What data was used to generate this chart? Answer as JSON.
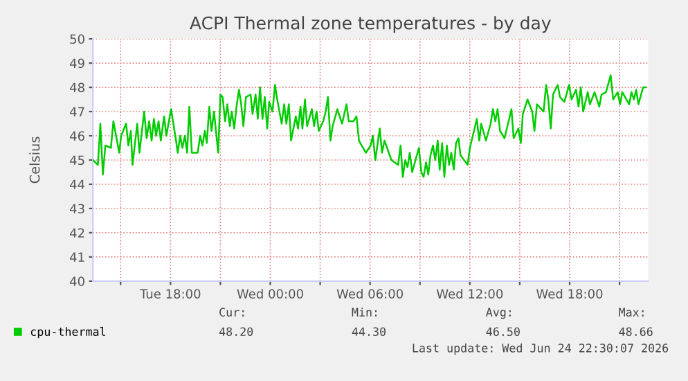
{
  "chart_data": {
    "type": "line",
    "title": "ACPI Thermal zone temperatures - by day",
    "ylabel": "Celsius",
    "xlim": [
      "2026-06-23T13:20",
      "2026-06-24T22:43"
    ],
    "xticks": [
      {
        "value": "2026-06-23T15:00",
        "label": null
      },
      {
        "value": "2026-06-23T18:00",
        "label": "Tue 18:00"
      },
      {
        "value": "2026-06-23T21:00",
        "label": null
      },
      {
        "value": "2026-06-24T00:00",
        "label": "Wed 00:00"
      },
      {
        "value": "2026-06-24T03:00",
        "label": null
      },
      {
        "value": "2026-06-24T06:00",
        "label": "Wed 06:00"
      },
      {
        "value": "2026-06-24T09:00",
        "label": null
      },
      {
        "value": "2026-06-24T12:00",
        "label": "Wed 12:00"
      },
      {
        "value": "2026-06-24T15:00",
        "label": null
      },
      {
        "value": "2026-06-24T18:00",
        "label": "Wed 18:00"
      },
      {
        "value": "2026-06-24T21:00",
        "label": null
      }
    ],
    "ylim": [
      40,
      50
    ],
    "yticks": [
      40,
      41,
      42,
      43,
      44,
      45,
      46,
      47,
      48,
      49,
      50
    ],
    "grid": true,
    "legend": "bottom left",
    "marker": "none",
    "line_style": "solid",
    "series": [
      {
        "name": "cpu-thermal",
        "color": "#00cc00",
        "x": [
          "2026-06-23T13:20",
          "2026-06-23T13:38",
          "2026-06-23T13:47",
          "2026-06-23T13:56",
          "2026-06-23T14:05",
          "2026-06-23T14:25",
          "2026-06-23T14:34",
          "2026-06-23T14:55",
          "2026-06-23T15:02",
          "2026-06-23T15:20",
          "2026-06-23T15:28",
          "2026-06-23T15:37",
          "2026-06-23T15:43",
          "2026-06-23T16:00",
          "2026-06-23T16:08",
          "2026-06-23T16:25",
          "2026-06-23T16:34",
          "2026-06-23T16:43",
          "2026-06-23T16:52",
          "2026-06-23T17:00",
          "2026-06-23T17:08",
          "2026-06-23T17:17",
          "2026-06-23T17:25",
          "2026-06-23T17:37",
          "2026-06-23T17:45",
          "2026-06-23T18:02",
          "2026-06-23T18:20",
          "2026-06-23T18:26",
          "2026-06-23T18:35",
          "2026-06-23T18:43",
          "2026-06-23T18:52",
          "2026-06-23T19:00",
          "2026-06-23T19:08",
          "2026-06-23T19:17",
          "2026-06-23T19:38",
          "2026-06-23T19:47",
          "2026-06-23T19:55",
          "2026-06-23T20:04",
          "2026-06-23T20:11",
          "2026-06-23T20:20",
          "2026-06-23T20:28",
          "2026-06-23T20:37",
          "2026-06-23T20:52",
          "2026-06-23T21:00",
          "2026-06-23T21:08",
          "2026-06-23T21:17",
          "2026-06-23T21:25",
          "2026-06-23T21:34",
          "2026-06-23T21:41",
          "2026-06-23T21:50",
          "2026-06-23T21:58",
          "2026-06-23T22:07",
          "2026-06-23T22:15",
          "2026-06-23T22:23",
          "2026-06-23T22:32",
          "2026-06-23T22:49",
          "2026-06-23T22:56",
          "2026-06-23T23:07",
          "2026-06-23T23:15",
          "2026-06-23T23:23",
          "2026-06-23T23:32",
          "2026-06-23T23:40",
          "2026-06-23T23:49",
          "2026-06-23T23:56",
          "2026-06-24T00:08",
          "2026-06-24T00:17",
          "2026-06-24T00:25",
          "2026-06-24T00:41",
          "2026-06-24T00:50",
          "2026-06-24T00:58",
          "2026-06-24T01:07",
          "2026-06-24T01:15",
          "2026-06-24T01:32",
          "2026-06-24T01:40",
          "2026-06-24T01:49",
          "2026-06-24T01:56",
          "2026-06-24T02:05",
          "2026-06-24T02:13",
          "2026-06-24T02:30",
          "2026-06-24T02:38",
          "2026-06-24T02:47",
          "2026-06-24T02:55",
          "2026-06-24T03:11",
          "2026-06-24T03:20",
          "2026-06-24T03:28",
          "2026-06-24T03:37",
          "2026-06-24T03:45",
          "2026-06-24T04:02",
          "2026-06-24T04:19",
          "2026-06-24T04:35",
          "2026-06-24T04:43",
          "2026-06-24T05:00",
          "2026-06-24T05:11",
          "2026-06-24T05:20",
          "2026-06-24T05:45",
          "2026-06-24T06:02",
          "2026-06-24T06:10",
          "2026-06-24T06:19",
          "2026-06-24T06:35",
          "2026-06-24T06:43",
          "2026-06-24T06:52",
          "2026-06-24T07:17",
          "2026-06-24T07:41",
          "2026-06-24T07:50",
          "2026-06-24T07:58",
          "2026-06-24T08:07",
          "2026-06-24T08:15",
          "2026-06-24T08:23",
          "2026-06-24T08:32",
          "2026-06-24T08:56",
          "2026-06-24T09:05",
          "2026-06-24T09:13",
          "2026-06-24T09:22",
          "2026-06-24T09:30",
          "2026-06-24T09:38",
          "2026-06-24T09:47",
          "2026-06-24T09:55",
          "2026-06-24T10:04",
          "2026-06-24T10:11",
          "2026-06-24T10:20",
          "2026-06-24T10:28",
          "2026-06-24T10:37",
          "2026-06-24T10:45",
          "2026-06-24T10:53",
          "2026-06-24T11:02",
          "2026-06-24T11:10",
          "2026-06-24T11:19",
          "2026-06-24T11:26",
          "2026-06-24T11:52",
          "2026-06-24T12:00",
          "2026-06-24T12:17",
          "2026-06-24T12:25",
          "2026-06-24T12:34",
          "2026-06-24T12:41",
          "2026-06-24T12:58",
          "2026-06-24T13:15",
          "2026-06-24T13:23",
          "2026-06-24T13:32",
          "2026-06-24T13:40",
          "2026-06-24T13:49",
          "2026-06-24T14:05",
          "2026-06-24T14:22",
          "2026-06-24T14:30",
          "2026-06-24T14:38",
          "2026-06-24T14:55",
          "2026-06-24T15:04",
          "2026-06-24T15:11",
          "2026-06-24T15:28",
          "2026-06-24T15:45",
          "2026-06-24T15:53",
          "2026-06-24T16:02",
          "2026-06-24T16:26",
          "2026-06-24T16:35",
          "2026-06-24T16:43",
          "2026-06-24T16:52",
          "2026-06-24T17:00",
          "2026-06-24T17:17",
          "2026-06-24T17:25",
          "2026-06-24T17:41",
          "2026-06-24T17:58",
          "2026-06-24T18:07",
          "2026-06-24T18:23",
          "2026-06-24T18:32",
          "2026-06-24T18:40",
          "2026-06-24T18:49",
          "2026-06-24T19:05",
          "2026-06-24T19:13",
          "2026-06-24T19:30",
          "2026-06-24T19:47",
          "2026-06-24T19:55",
          "2026-06-24T20:11",
          "2026-06-24T20:28",
          "2026-06-24T20:37",
          "2026-06-24T20:53",
          "2026-06-24T21:02",
          "2026-06-24T21:10",
          "2026-06-24T21:35",
          "2026-06-24T21:43",
          "2026-06-24T21:52",
          "2026-06-24T22:00",
          "2026-06-24T22:08",
          "2026-06-24T22:25",
          "2026-06-24T22:34"
        ],
        "values": [
          45.0,
          44.8,
          46.5,
          44.4,
          45.6,
          45.5,
          46.6,
          45.3,
          46.0,
          46.5,
          45.6,
          46.2,
          44.8,
          46.5,
          45.3,
          47.0,
          45.9,
          46.6,
          45.8,
          46.7,
          46.0,
          46.6,
          45.8,
          46.8,
          46.0,
          47.1,
          45.8,
          45.3,
          46.0,
          45.5,
          46.0,
          45.3,
          47.2,
          45.3,
          45.3,
          46.0,
          45.6,
          46.2,
          45.7,
          47.2,
          46.2,
          47.0,
          45.3,
          47.7,
          47.6,
          46.6,
          47.3,
          46.4,
          47.0,
          46.3,
          47.2,
          47.9,
          47.3,
          46.4,
          47.6,
          47.7,
          46.9,
          47.7,
          46.7,
          48.0,
          46.7,
          47.6,
          46.3,
          47.4,
          47.0,
          48.1,
          47.5,
          46.5,
          47.3,
          46.5,
          47.3,
          45.8,
          46.8,
          46.3,
          47.2,
          46.3,
          47.5,
          46.4,
          47.1,
          46.4,
          47.0,
          46.2,
          46.6,
          47.0,
          47.6,
          45.8,
          46.4,
          47.1,
          46.5,
          47.3,
          46.6,
          46.6,
          46.8,
          45.8,
          45.3,
          45.6,
          46.0,
          45.0,
          46.3,
          45.3,
          45.8,
          45.0,
          44.8,
          45.6,
          44.3,
          45.0,
          44.7,
          45.3,
          44.5,
          45.5,
          44.5,
          44.3,
          44.9,
          44.4,
          45.2,
          45.6,
          45.0,
          45.8,
          44.6,
          45.7,
          44.3,
          45.6,
          44.8,
          45.3,
          44.6,
          45.7,
          45.9,
          45.2,
          44.8,
          45.5,
          46.3,
          46.7,
          45.8,
          46.5,
          45.8,
          46.5,
          47.1,
          46.6,
          47.1,
          46.2,
          45.9,
          46.7,
          47.1,
          45.9,
          46.3,
          45.7,
          46.9,
          47.5,
          47.0,
          46.2,
          47.3,
          47.0,
          48.1,
          47.5,
          46.3,
          47.7,
          48.1,
          47.6,
          47.4,
          48.1,
          47.5,
          47.9,
          47.2,
          48.0,
          47.0,
          47.8,
          47.3,
          47.8,
          47.2,
          47.7,
          47.8,
          48.5,
          47.5,
          47.8,
          47.3,
          47.8,
          47.3,
          47.8,
          47.5,
          47.9,
          47.3,
          48.0,
          48.0
        ]
      }
    ],
    "annotations": [
      "Cur:",
      "Min:",
      "Avg:",
      "Max:",
      "48.20",
      "44.30",
      "46.50",
      "48.66",
      "Last update: Wed Jun 24 22:30:07 2026"
    ]
  }
}
